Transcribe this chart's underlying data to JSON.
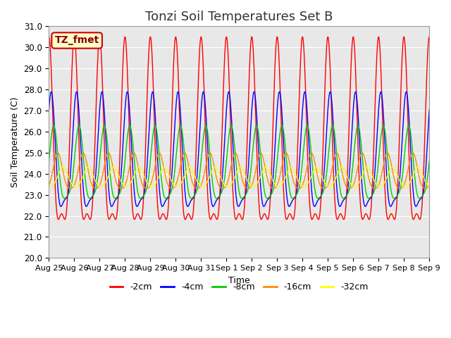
{
  "title": "Tonzi Soil Temperatures Set B",
  "xlabel": "Time",
  "ylabel": "Soil Temperature (C)",
  "ylim": [
    20.0,
    31.0
  ],
  "yticks": [
    20.0,
    21.0,
    22.0,
    23.0,
    24.0,
    25.0,
    26.0,
    27.0,
    28.0,
    29.0,
    30.0,
    31.0
  ],
  "xtick_labels": [
    "Aug 25",
    "Aug 26",
    "Aug 27",
    "Aug 28",
    "Aug 29",
    "Aug 30",
    "Aug 31",
    "Sep 1",
    "Sep 2",
    "Sep 3",
    "Sep 4",
    "Sep 5",
    "Sep 6",
    "Sep 7",
    "Sep 8",
    "Sep 9"
  ],
  "series": [
    {
      "label": "-2cm",
      "color": "#FF0000",
      "amp": 4.2,
      "mean": 24.8,
      "phase_shift": 0.0,
      "amp2": 1.5,
      "phase2": 0.0
    },
    {
      "label": "-4cm",
      "color": "#0000FF",
      "amp": 2.6,
      "mean": 24.5,
      "phase_shift": 0.08,
      "amp2": 0.8,
      "phase2": 0.1
    },
    {
      "label": "-8cm",
      "color": "#00CC00",
      "amp": 1.7,
      "mean": 24.2,
      "phase_shift": 0.18,
      "amp2": 0.4,
      "phase2": 0.2
    },
    {
      "label": "-16cm",
      "color": "#FF8C00",
      "amp": 0.85,
      "mean": 24.0,
      "phase_shift": 0.35,
      "amp2": 0.15,
      "phase2": 0.35
    },
    {
      "label": "-32cm",
      "color": "#FFFF00",
      "amp": 0.45,
      "mean": 23.8,
      "phase_shift": 0.55,
      "amp2": 0.05,
      "phase2": 0.55
    }
  ],
  "annotation_text": "TZ_fmet",
  "annotation_bg": "#FFFFCC",
  "annotation_border": "#CC0000",
  "background_color": "#E8E8E8",
  "grid_color": "#FFFFFF",
  "title_fontsize": 13,
  "axis_fontsize": 9,
  "tick_fontsize": 8.5,
  "legend_fontsize": 9
}
